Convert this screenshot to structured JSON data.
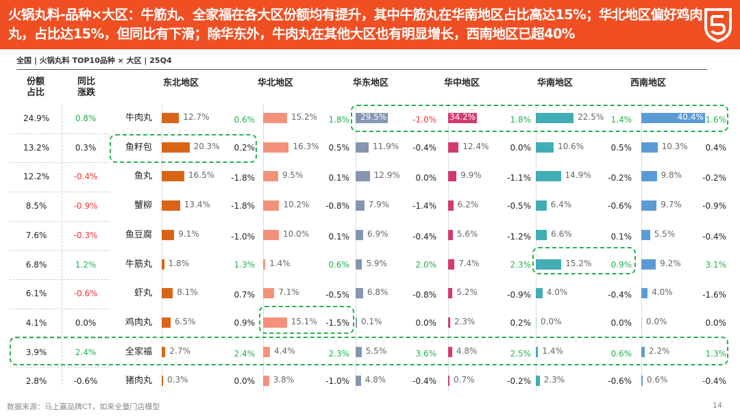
{
  "header": {
    "title": "火锅丸料-品种×大区：牛筋丸、全家福在各大区份额均有提升，其中牛筋丸在华南地区占比高达15%；华北地区偏好鸡肉丸，占比达15%，但同比有下滑；除华东外，牛肉丸在其他大区也有明显增长，西南地区已超40%",
    "logo_icon": "brand-shield-logo-icon"
  },
  "subtitle": "全国 | 火锅丸料 TOP10品种 × 大区  |  25Q4",
  "footer": {
    "source": "数据来源：马上赢品牌CT，如来全量门店模型",
    "page": "14"
  },
  "chart_data": {
    "type": "table",
    "columns": {
      "share": "份额\n占比",
      "yoy": "同比\n涨跌"
    },
    "share_label_line1": "份额",
    "share_label_line2": "占比",
    "yoy_label_line1": "同比",
    "yoy_label_line2": "涨跌",
    "categories": [
      "牛肉丸",
      "鱼籽包",
      "鱼丸",
      "蟹柳",
      "鱼豆腐",
      "牛筋丸",
      "虾丸",
      "鸡肉丸",
      "全家福",
      "猪肉丸"
    ],
    "share": [
      "24.9%",
      "13.2%",
      "12.2%",
      "8.5%",
      "7.6%",
      "6.8%",
      "6.1%",
      "4.1%",
      "3.9%",
      "2.8%"
    ],
    "yoy": [
      "0.8%",
      "0.3%",
      "-0.4%",
      "-0.9%",
      "-0.3%",
      "1.2%",
      "-0.6%",
      "0.0%",
      "2.4%",
      "-0.6%"
    ],
    "yoy_tone": [
      "g",
      "",
      "r",
      "r",
      "r",
      "g",
      "r",
      "",
      "g",
      ""
    ],
    "regions": [
      {
        "name": "东北地区",
        "color": "#D96416",
        "values": [
          12.7,
          20.3,
          16.5,
          13.4,
          9.1,
          1.8,
          8.1,
          6.5,
          2.7,
          0.3
        ],
        "labels": [
          "12.7%",
          "20.3%",
          "16.5%",
          "13.4%",
          "9.1%",
          "1.8%",
          "8.1%",
          "6.5%",
          "2.7%",
          "0.3%"
        ],
        "change": [
          "0.6%",
          "0.2%",
          "-1.8%",
          "-1.8%",
          "-1.0%",
          "1.3%",
          "0.7%",
          "0.9%",
          "2.4%",
          "0.0%"
        ],
        "tone": [
          "g",
          "",
          "",
          "",
          "",
          "g",
          "",
          "",
          "g",
          ""
        ]
      },
      {
        "name": "华北地区",
        "color": "#F4917B",
        "values": [
          15.2,
          16.3,
          9.5,
          10.2,
          10.0,
          1.4,
          7.1,
          15.1,
          4.4,
          3.8
        ],
        "labels": [
          "15.2%",
          "16.3%",
          "9.5%",
          "10.2%",
          "10.0%",
          "1.4%",
          "7.1%",
          "15.1%",
          "4.4%",
          "3.8%"
        ],
        "change": [
          "1.8%",
          "0.5%",
          "0.1%",
          "-0.8%",
          "0.1%",
          "0.6%",
          "-0.5%",
          "-1.5%",
          "2.3%",
          "-1.0%"
        ],
        "tone": [
          "g",
          "",
          "",
          "",
          "",
          "g",
          "",
          "",
          "g",
          ""
        ]
      },
      {
        "name": "华东地区",
        "color": "#8496B0",
        "values": [
          29.5,
          11.9,
          12.9,
          7.9,
          6.9,
          5.9,
          6.8,
          0.1,
          5.5,
          4.8
        ],
        "labels": [
          "29.5%",
          "11.9%",
          "12.9%",
          "7.9%",
          "6.9%",
          "5.9%",
          "6.8%",
          "0.1%",
          "5.5%",
          "4.8%"
        ],
        "change": [
          "-1.0%",
          "-0.4%",
          "0.0%",
          "-1.4%",
          "-0.4%",
          "2.0%",
          "-0.8%",
          "0.0%",
          "3.6%",
          "-0.4%"
        ],
        "tone": [
          "r",
          "",
          "",
          "",
          "",
          "g",
          "",
          "",
          "g",
          ""
        ]
      },
      {
        "name": "华中地区",
        "color": "#D33A6F",
        "values": [
          34.2,
          12.4,
          9.9,
          6.2,
          5.6,
          7.4,
          5.2,
          2.3,
          4.8,
          0.7
        ],
        "labels": [
          "34.2%",
          "12.4%",
          "9.9%",
          "6.2%",
          "5.6%",
          "7.4%",
          "5.2%",
          "2.3%",
          "4.8%",
          "0.7%"
        ],
        "change": [
          "1.8%",
          "0.0%",
          "-1.1%",
          "-0.5%",
          "-1.2%",
          "2.3%",
          "-0.9%",
          "0.2%",
          "2.5%",
          "-0.2%"
        ],
        "tone": [
          "g",
          "",
          "",
          "",
          "",
          "g",
          "",
          "",
          "g",
          ""
        ]
      },
      {
        "name": "华南地区",
        "color": "#41ADB5",
        "values": [
          22.5,
          10.6,
          14.9,
          6.4,
          6.6,
          15.2,
          4.0,
          0.0,
          1.4,
          2.3
        ],
        "labels": [
          "22.5%",
          "10.6%",
          "14.9%",
          "6.4%",
          "6.6%",
          "15.2%",
          "4.0%",
          "0.0%",
          "1.4%",
          "2.3%"
        ],
        "change": [
          "1.4%",
          "0.5%",
          "-0.2%",
          "-0.6%",
          "0.1%",
          "0.9%",
          "-0.4%",
          "0.0%",
          "0.6%",
          "-0.6%"
        ],
        "tone": [
          "g",
          "",
          "",
          "",
          "",
          "g",
          "",
          "",
          "g",
          ""
        ]
      },
      {
        "name": "西南地区",
        "color": "#5B9BD5",
        "values": [
          40.4,
          10.3,
          9.8,
          9.7,
          5.5,
          9.2,
          4.0,
          0.0,
          2.2,
          0.6
        ],
        "labels": [
          "40.4%",
          "10.3%",
          "9.8%",
          "9.7%",
          "5.5%",
          "9.2%",
          "4.0%",
          "0.0%",
          "2.2%",
          "0.6%"
        ],
        "change": [
          "1.6%",
          "0.4%",
          "-0.2%",
          "-0.9%",
          "-0.4%",
          "3.1%",
          "-1.6%",
          "0.0%",
          "1.3%",
          "-0.4%"
        ],
        "tone": [
          "g",
          "",
          "",
          "",
          "",
          "g",
          "",
          "",
          "g",
          ""
        ]
      }
    ],
    "highlight_color": "#22B14C",
    "positive_color": "#22B14C",
    "negative_color": "#FF3030"
  }
}
